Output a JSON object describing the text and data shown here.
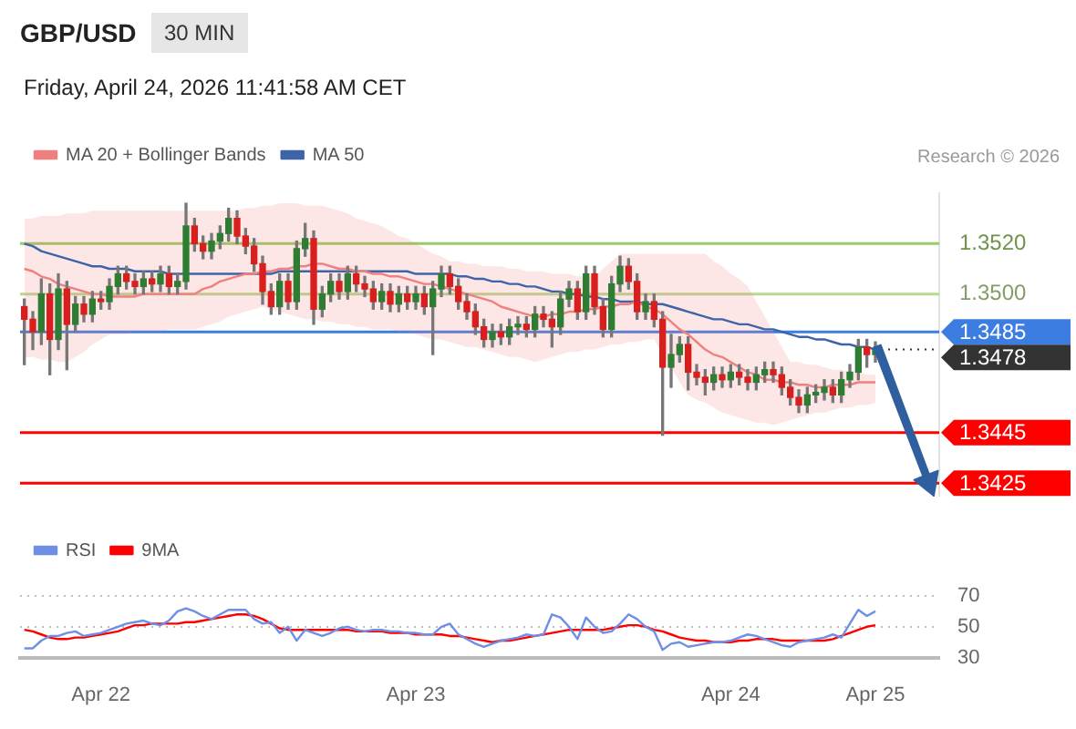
{
  "chart_data": [
    {
      "type": "candlestick",
      "title": "GBP/USD",
      "subtitle": "30 MIN",
      "annotations": [
        "Friday, April 24, 2026 11:41:58 AM CET",
        "Research © 2026"
      ],
      "categories": [
        null,
        null,
        null,
        null,
        null,
        null,
        null,
        null,
        null,
        null,
        null,
        null,
        null,
        null,
        null,
        null,
        null,
        null,
        null,
        null,
        null,
        null,
        null,
        null,
        null,
        null,
        null,
        null,
        null,
        null,
        null,
        null,
        null,
        null,
        null,
        null,
        null,
        null,
        null,
        null,
        null,
        null,
        null,
        null,
        null,
        null,
        null,
        null,
        null,
        null,
        null,
        null,
        null,
        null,
        null,
        null,
        null,
        null,
        null,
        null,
        null,
        null,
        null,
        null,
        null,
        null,
        null,
        null,
        null,
        null,
        null,
        null,
        null,
        null,
        null,
        null,
        null,
        null,
        null,
        null,
        null,
        null,
        null,
        null,
        null,
        null,
        null,
        null,
        null,
        null,
        null,
        null,
        null,
        null,
        null,
        null,
        null,
        null,
        null,
        null,
        null,
        null,
        null,
        null,
        null,
        null,
        null,
        null
      ],
      "ohlc": [
        [
          1.3495,
          1.3498,
          1.3472,
          1.349
        ],
        [
          1.349,
          1.3493,
          1.3478,
          1.3485
        ],
        [
          1.3485,
          1.3506,
          1.348,
          1.35
        ],
        [
          1.35,
          1.3504,
          1.3468,
          1.3482
        ],
        [
          1.3482,
          1.3508,
          1.3478,
          1.3502
        ],
        [
          1.3502,
          1.3505,
          1.347,
          1.3488
        ],
        [
          1.3488,
          1.3499,
          1.3485,
          1.3496
        ],
        [
          1.3496,
          1.3499,
          1.3489,
          1.3492
        ],
        [
          1.3492,
          1.3501,
          1.3489,
          1.3498
        ],
        [
          1.3498,
          1.3501,
          1.3494,
          1.3497
        ],
        [
          1.3497,
          1.3506,
          1.3494,
          1.3503
        ],
        [
          1.3503,
          1.3511,
          1.35,
          1.3508
        ],
        [
          1.3508,
          1.3511,
          1.3502,
          1.3505
        ],
        [
          1.3505,
          1.3508,
          1.35,
          1.3503
        ],
        [
          1.3503,
          1.3509,
          1.35,
          1.3506
        ],
        [
          1.3506,
          1.3509,
          1.3501,
          1.3504
        ],
        [
          1.3504,
          1.3511,
          1.3501,
          1.3508
        ],
        [
          1.3508,
          1.3511,
          1.35,
          1.3503
        ],
        [
          1.3503,
          1.3508,
          1.35,
          1.3505
        ],
        [
          1.3505,
          1.3536,
          1.3502,
          1.3527
        ],
        [
          1.3527,
          1.353,
          1.3517,
          1.352
        ],
        [
          1.352,
          1.3523,
          1.3514,
          1.3517
        ],
        [
          1.3517,
          1.3524,
          1.3514,
          1.3521
        ],
        [
          1.3521,
          1.3527,
          1.3518,
          1.3524
        ],
        [
          1.3524,
          1.3534,
          1.3521,
          1.353
        ],
        [
          1.353,
          1.3533,
          1.352,
          1.3523
        ],
        [
          1.3523,
          1.3526,
          1.3516,
          1.3519
        ],
        [
          1.3519,
          1.3522,
          1.3509,
          1.3512
        ],
        [
          1.3512,
          1.3515,
          1.3496,
          1.3501
        ],
        [
          1.3501,
          1.3504,
          1.3492,
          1.3495
        ],
        [
          1.3495,
          1.3508,
          1.3492,
          1.3505
        ],
        [
          1.3505,
          1.3508,
          1.3494,
          1.3497
        ],
        [
          1.3497,
          1.3521,
          1.3494,
          1.3518
        ],
        [
          1.3518,
          1.3528,
          1.3515,
          1.3522
        ],
        [
          1.3522,
          1.3525,
          1.3488,
          1.3494
        ],
        [
          1.3494,
          1.3503,
          1.3491,
          1.35
        ],
        [
          1.35,
          1.3508,
          1.3497,
          1.3505
        ],
        [
          1.3505,
          1.3508,
          1.3498,
          1.3501
        ],
        [
          1.3501,
          1.3511,
          1.3498,
          1.3508
        ],
        [
          1.3508,
          1.3511,
          1.3501,
          1.3504
        ],
        [
          1.3504,
          1.3507,
          1.3499,
          1.3502
        ],
        [
          1.3502,
          1.3505,
          1.3494,
          1.3497
        ],
        [
          1.3497,
          1.3504,
          1.3494,
          1.3501
        ],
        [
          1.3501,
          1.3504,
          1.3493,
          1.3496
        ],
        [
          1.3496,
          1.3503,
          1.3493,
          1.35
        ],
        [
          1.35,
          1.3503,
          1.3494,
          1.3497
        ],
        [
          1.3497,
          1.3503,
          1.3494,
          1.35
        ],
        [
          1.35,
          1.3503,
          1.3492,
          1.3495
        ],
        [
          1.3495,
          1.3505,
          1.3476,
          1.3502
        ],
        [
          1.3502,
          1.3511,
          1.3499,
          1.3508
        ],
        [
          1.3508,
          1.3511,
          1.35,
          1.3503
        ],
        [
          1.3503,
          1.3506,
          1.3494,
          1.3497
        ],
        [
          1.3497,
          1.35,
          1.349,
          1.3493
        ],
        [
          1.3493,
          1.3496,
          1.3484,
          1.3487
        ],
        [
          1.3487,
          1.349,
          1.3479,
          1.3482
        ],
        [
          1.3482,
          1.3488,
          1.3479,
          1.3485
        ],
        [
          1.3485,
          1.3488,
          1.348,
          1.3483
        ],
        [
          1.3483,
          1.349,
          1.348,
          1.3487
        ],
        [
          1.3487,
          1.3491,
          1.3484,
          1.3488
        ],
        [
          1.3488,
          1.3491,
          1.3483,
          1.3486
        ],
        [
          1.3486,
          1.3495,
          1.3483,
          1.3492
        ],
        [
          1.3492,
          1.3495,
          1.3487,
          1.349
        ],
        [
          1.349,
          1.3493,
          1.3479,
          1.3487
        ],
        [
          1.3487,
          1.3501,
          1.3484,
          1.3498
        ],
        [
          1.3498,
          1.3505,
          1.3495,
          1.3502
        ],
        [
          1.3502,
          1.3505,
          1.349,
          1.3493
        ],
        [
          1.3493,
          1.3511,
          1.349,
          1.3508
        ],
        [
          1.3508,
          1.3511,
          1.3492,
          1.3495
        ],
        [
          1.3495,
          1.3498,
          1.3483,
          1.3486
        ],
        [
          1.3486,
          1.3507,
          1.3483,
          1.3504
        ],
        [
          1.3504,
          1.3515,
          1.3501,
          1.3511
        ],
        [
          1.3511,
          1.3514,
          1.3502,
          1.3505
        ],
        [
          1.3505,
          1.3508,
          1.349,
          1.3493
        ],
        [
          1.3493,
          1.35,
          1.349,
          1.3497
        ],
        [
          1.3497,
          1.35,
          1.3487,
          1.349
        ],
        [
          1.349,
          1.3493,
          1.3444,
          1.3471
        ],
        [
          1.3471,
          1.3484,
          1.3463,
          1.3476
        ],
        [
          1.3476,
          1.3483,
          1.3473,
          1.348
        ],
        [
          1.348,
          1.3483,
          1.3462,
          1.3469
        ],
        [
          1.3469,
          1.3472,
          1.3464,
          1.3467
        ],
        [
          1.3467,
          1.347,
          1.346,
          1.3465
        ],
        [
          1.3465,
          1.3471,
          1.3462,
          1.3468
        ],
        [
          1.3468,
          1.3471,
          1.3463,
          1.3466
        ],
        [
          1.3466,
          1.3472,
          1.3463,
          1.3469
        ],
        [
          1.3469,
          1.3472,
          1.3464,
          1.3467
        ],
        [
          1.3467,
          1.347,
          1.3462,
          1.3465
        ],
        [
          1.3465,
          1.3471,
          1.3462,
          1.3468
        ],
        [
          1.3468,
          1.3473,
          1.3465,
          1.347
        ],
        [
          1.347,
          1.3473,
          1.3465,
          1.3468
        ],
        [
          1.3468,
          1.3471,
          1.346,
          1.3463
        ],
        [
          1.3463,
          1.3466,
          1.3456,
          1.3459
        ],
        [
          1.3459,
          1.3462,
          1.3453,
          1.3456
        ],
        [
          1.3456,
          1.3463,
          1.3453,
          1.346
        ],
        [
          1.346,
          1.3464,
          1.3457,
          1.3461
        ],
        [
          1.3461,
          1.3466,
          1.3458,
          1.3463
        ],
        [
          1.3463,
          1.3466,
          1.3457,
          1.346
        ],
        [
          1.346,
          1.3469,
          1.3457,
          1.3466
        ],
        [
          1.3466,
          1.3472,
          1.3463,
          1.3469
        ],
        [
          1.3469,
          1.3482,
          1.3466,
          1.3479
        ],
        [
          1.3479,
          1.3482,
          1.3471,
          1.3476
        ],
        [
          1.3476,
          1.3481,
          1.3473,
          1.3478
        ],
        null,
        null,
        null,
        null,
        null,
        null,
        null
      ],
      "series": [
        {
          "name": "MA 20 + Bollinger Bands",
          "type": "line",
          "color": "#f08080",
          "values": [
            1.351,
            1.3509,
            1.3507,
            1.3506,
            1.3504,
            1.3503,
            1.3502,
            1.3501,
            1.35,
            1.35,
            1.3499,
            1.3499,
            1.3499,
            1.3499,
            1.35,
            1.35,
            1.35,
            1.35,
            1.35,
            1.35,
            1.35,
            1.3502,
            1.3503,
            1.3505,
            1.3506,
            1.3507,
            1.3508,
            1.3508,
            1.3509,
            1.3509,
            1.351,
            1.351,
            1.3511,
            1.3511,
            1.3512,
            1.3512,
            1.3511,
            1.351,
            1.351,
            1.3509,
            1.3509,
            1.3508,
            1.3508,
            1.3507,
            1.3507,
            1.3506,
            1.3505,
            1.3504,
            1.3504,
            1.3503,
            1.3502,
            1.3501,
            1.35,
            1.3499,
            1.3498,
            1.3497,
            1.3495,
            1.3494,
            1.3493,
            1.3492,
            1.3491,
            1.3491,
            1.3492,
            1.3492,
            1.3493,
            1.3493,
            1.3494,
            1.3494,
            1.3495,
            1.3495,
            1.3496,
            1.3496,
            1.3497,
            1.3495,
            1.3494,
            1.3492,
            1.3489,
            1.3486,
            1.3484,
            1.3481,
            1.3478,
            1.3476,
            1.3475,
            1.3473,
            1.3471,
            1.3469,
            1.3468,
            1.3466,
            1.3466,
            1.3465,
            1.3465,
            1.3464,
            1.3464,
            1.3463,
            1.3463,
            1.3464,
            1.3464,
            1.3464,
            1.3465,
            1.3465,
            1.3465,
            null,
            null,
            null,
            null,
            null,
            null,
            null
          ],
          "upper": [
            1.353,
            1.353,
            1.3531,
            1.3531,
            1.3531,
            1.3532,
            1.3532,
            1.3532,
            1.3533,
            1.3533,
            1.3533,
            1.3533,
            1.3533,
            1.3533,
            1.3533,
            1.3533,
            1.3533,
            1.3533,
            1.3533,
            1.3533,
            1.3533,
            1.3533,
            1.3533,
            1.3533,
            1.3533,
            1.3533,
            1.3534,
            1.3534,
            1.3535,
            1.3535,
            1.3536,
            1.3536,
            1.3536,
            1.3535,
            1.3535,
            1.3535,
            1.3534,
            1.3533,
            1.3532,
            1.353,
            1.3529,
            1.3528,
            1.3527,
            1.3525,
            1.3523,
            1.3522,
            1.352,
            1.3518,
            1.3516,
            1.3515,
            1.3513,
            1.3513,
            1.3512,
            1.3512,
            1.3511,
            1.3511,
            1.3511,
            1.351,
            1.351,
            1.3509,
            1.3509,
            1.3509,
            1.3508,
            1.3508,
            1.3508,
            1.3507,
            1.3507,
            1.3507,
            1.351,
            1.3513,
            1.3516,
            1.3516,
            1.3516,
            1.3516,
            1.3516,
            1.3516,
            1.3516,
            1.3516,
            1.3516,
            1.3516,
            1.3516,
            1.3513,
            1.3511,
            1.3508,
            1.3506,
            1.3503,
            1.3497,
            1.3491,
            1.3485,
            1.3479,
            1.3473,
            1.3473,
            1.3472,
            1.3472,
            1.3471,
            1.347,
            1.347,
            1.3469,
            1.3469,
            1.3468,
            1.3468,
            null,
            null,
            null,
            null,
            null,
            null,
            null
          ],
          "lower": [
            1.3475,
            1.3475,
            1.3474,
            1.3474,
            1.3473,
            1.3473,
            1.3475,
            1.3477,
            1.348,
            1.3482,
            1.3484,
            1.3484,
            1.3484,
            1.3485,
            1.3485,
            1.3485,
            1.3485,
            1.3486,
            1.3486,
            1.3486,
            1.3486,
            1.3487,
            1.3488,
            1.3489,
            1.3491,
            1.3492,
            1.3493,
            1.3494,
            1.3495,
            1.3494,
            1.3493,
            1.3492,
            1.3491,
            1.349,
            1.349,
            1.3489,
            1.3489,
            1.3488,
            1.3488,
            1.3487,
            1.3487,
            1.3486,
            1.3486,
            1.3486,
            1.3485,
            1.3485,
            1.3484,
            1.3483,
            1.3482,
            1.3482,
            1.3481,
            1.348,
            1.3479,
            1.3479,
            1.3478,
            1.3477,
            1.3476,
            1.3475,
            1.3475,
            1.3474,
            1.3473,
            1.3474,
            1.3475,
            1.3476,
            1.3477,
            1.3477,
            1.3478,
            1.3478,
            1.3479,
            1.348,
            1.348,
            1.3481,
            1.3481,
            1.3482,
            1.3482,
            1.3476,
            1.3471,
            1.3465,
            1.346,
            1.3458,
            1.3457,
            1.3455,
            1.3453,
            1.3452,
            1.3451,
            1.345,
            1.3449,
            1.3449,
            1.3448,
            1.3449,
            1.345,
            1.3451,
            1.3452,
            1.3453,
            1.3453,
            1.3454,
            1.3455,
            1.3455,
            1.3456,
            1.3456,
            1.3457,
            null,
            null,
            null,
            null,
            null,
            null,
            null
          ]
        },
        {
          "name": "MA 50",
          "type": "line",
          "color": "#3d64a8",
          "values": [
            1.352,
            1.3519,
            1.3517,
            1.3516,
            1.3515,
            1.3514,
            1.3513,
            1.3512,
            1.3511,
            1.3511,
            1.351,
            1.351,
            1.351,
            1.3509,
            1.3509,
            1.3509,
            1.3509,
            1.3508,
            1.3508,
            1.3508,
            1.3508,
            1.3508,
            1.3508,
            1.3508,
            1.3508,
            1.3508,
            1.3508,
            1.3508,
            1.3508,
            1.3508,
            1.3509,
            1.3509,
            1.3509,
            1.3509,
            1.3509,
            1.3509,
            1.3509,
            1.3509,
            1.3509,
            1.3509,
            1.3509,
            1.3509,
            1.3509,
            1.3509,
            1.3509,
            1.3509,
            1.3508,
            1.3508,
            1.3508,
            1.3508,
            1.3508,
            1.3507,
            1.3507,
            1.3506,
            1.3506,
            1.3505,
            1.3505,
            1.3504,
            1.3504,
            1.3503,
            1.3503,
            1.3502,
            1.3501,
            1.3501,
            1.35,
            1.35,
            1.3499,
            1.3499,
            1.3498,
            1.3498,
            1.3497,
            1.3497,
            1.3497,
            1.3496,
            1.3496,
            1.3496,
            1.3495,
            1.3494,
            1.3493,
            1.3492,
            1.3491,
            1.349,
            1.349,
            1.3489,
            1.3488,
            1.3488,
            1.3487,
            1.3486,
            1.3486,
            1.3485,
            1.3484,
            1.3483,
            1.3483,
            1.3482,
            1.3482,
            1.3481,
            1.348,
            1.348,
            1.3479,
            1.3479,
            1.3478,
            null,
            null,
            null,
            null,
            null,
            null,
            null
          ]
        }
      ],
      "ylim": [
        1.342,
        1.354
      ],
      "ref_lines": [
        {
          "axis": "y",
          "value": 1.352,
          "label": "1.3520",
          "color": "#99cc66"
        },
        {
          "axis": "y",
          "value": 1.35,
          "label": "1.3500",
          "color": "#b8d98f"
        },
        {
          "axis": "y",
          "value": 1.3485,
          "label": "1.3485",
          "color": "#3b7de0"
        },
        {
          "axis": "y",
          "value": 1.3478,
          "label": "1.3478",
          "color": "#333333",
          "line_style": "dotted"
        },
        {
          "axis": "y",
          "value": 1.3445,
          "label": "1.3445",
          "color": "#ff0000"
        },
        {
          "axis": "y",
          "value": 1.3425,
          "label": "1.3425",
          "color": "#ff0000"
        }
      ],
      "legend": "top left",
      "tick_labels": false
    },
    {
      "type": "line",
      "categories": [
        null,
        null,
        null,
        null,
        null,
        null,
        null,
        null,
        null,
        "Apr 22",
        null,
        null,
        null,
        null,
        null,
        null,
        null,
        null,
        null,
        null,
        null,
        null,
        null,
        null,
        null,
        null,
        null,
        null,
        null,
        null,
        null,
        null,
        null,
        null,
        null,
        null,
        null,
        null,
        null,
        null,
        null,
        null,
        null,
        null,
        null,
        null,
        "Apr 23",
        null,
        null,
        null,
        null,
        null,
        null,
        null,
        null,
        null,
        null,
        null,
        null,
        null,
        null,
        null,
        null,
        null,
        null,
        null,
        null,
        null,
        null,
        null,
        null,
        null,
        null,
        null,
        null,
        null,
        null,
        null,
        null,
        null,
        null,
        null,
        null,
        "Apr 24",
        null,
        null,
        null,
        null,
        null,
        null,
        null,
        null,
        null,
        null,
        null,
        null,
        null,
        null,
        null,
        null,
        "Apr 25",
        null,
        null,
        null,
        null,
        null,
        null,
        null
      ],
      "series": [
        {
          "name": "RSI",
          "color": "#6f8fe6",
          "values": [
            36,
            36,
            41,
            44,
            44,
            46,
            47,
            44,
            45,
            46,
            48,
            50,
            52,
            53,
            54,
            52,
            51,
            54,
            60,
            62,
            60,
            57,
            55,
            58,
            61,
            61,
            61,
            55,
            52,
            53,
            46,
            50,
            41,
            48,
            46,
            44,
            46,
            49,
            50,
            48,
            47,
            48,
            48,
            47,
            47,
            46,
            46,
            45,
            45,
            50,
            52,
            45,
            42,
            39,
            37,
            39,
            41,
            42,
            43,
            45,
            44,
            45,
            58,
            56,
            50,
            42,
            56,
            50,
            46,
            47,
            52,
            58,
            55,
            50,
            47,
            35,
            39,
            40,
            37,
            38,
            39,
            40,
            40,
            41,
            43,
            45,
            44,
            42,
            40,
            38,
            37,
            40,
            41,
            42,
            43,
            45,
            43,
            52,
            61,
            57,
            60,
            null,
            null,
            null,
            null,
            null,
            null,
            null
          ]
        },
        {
          "name": "9MA",
          "color": "#ff0000",
          "values": [
            48,
            47,
            45,
            43,
            42,
            42,
            43,
            43,
            44,
            45,
            46,
            47,
            49,
            51,
            51,
            52,
            52,
            52,
            52,
            53,
            53,
            54,
            55,
            56,
            57,
            58,
            58,
            57,
            55,
            52,
            49,
            48,
            48,
            48,
            48,
            48,
            48,
            48,
            48,
            47,
            47,
            47,
            47,
            46,
            46,
            46,
            45,
            45,
            45,
            45,
            44,
            44,
            43,
            42,
            41,
            40,
            41,
            41,
            42,
            43,
            44,
            45,
            46,
            47,
            48,
            48,
            48,
            48,
            48,
            49,
            50,
            51,
            51,
            50,
            48,
            47,
            45,
            43,
            42,
            41,
            41,
            40,
            40,
            40,
            41,
            41,
            42,
            42,
            42,
            41,
            41,
            41,
            41,
            41,
            41,
            42,
            44,
            46,
            48,
            50,
            51,
            null,
            null,
            null,
            null,
            null,
            null,
            null
          ]
        }
      ],
      "ylim": [
        30,
        70
      ],
      "yticks": [
        30,
        50,
        70
      ],
      "grid": "y",
      "legend": "top left"
    }
  ]
}
